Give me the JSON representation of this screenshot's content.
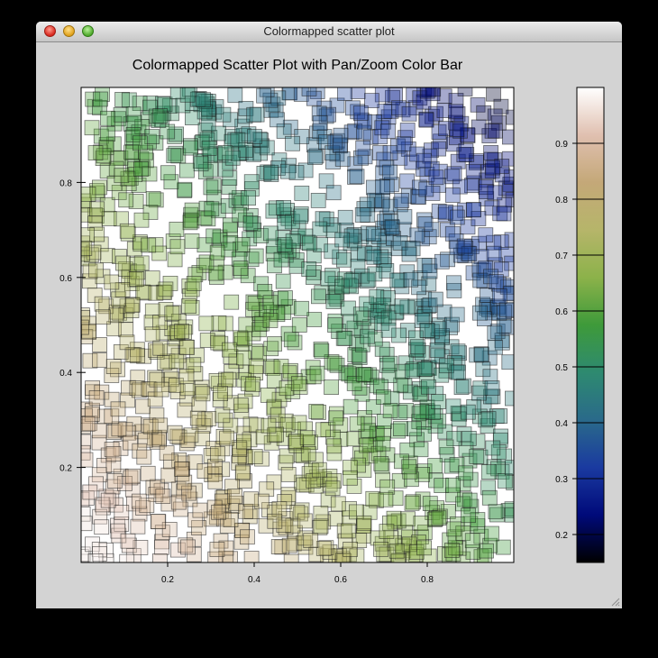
{
  "window": {
    "title": "Colormapped scatter plot"
  },
  "chart_data": {
    "type": "scatter",
    "title": "Colormapped Scatter Plot with Pan/Zoom Color Bar",
    "xlabel": "",
    "ylabel": "",
    "xlim": [
      0.0,
      1.0
    ],
    "ylim": [
      0.0,
      1.0
    ],
    "x_ticks": [
      "0.2",
      "0.4",
      "0.6",
      "0.8"
    ],
    "y_ticks": [
      "0.2",
      "0.4",
      "0.6",
      "0.8"
    ],
    "marker": "square",
    "point_count": 1500,
    "grid": false,
    "legend": "none",
    "colorbar": {
      "range": [
        0.15,
        1.0
      ],
      "ticks": [
        "0.2",
        "0.3",
        "0.4",
        "0.5",
        "0.6",
        "0.7",
        "0.8",
        "0.9"
      ],
      "colormap": [
        "#000000",
        "#000a7a",
        "#1a3aa0",
        "#2a6a8a",
        "#2e8a70",
        "#3e9a3a",
        "#8cb24a",
        "#b6b56a",
        "#c4a878",
        "#e0c0b0",
        "#ffffff"
      ]
    }
  }
}
